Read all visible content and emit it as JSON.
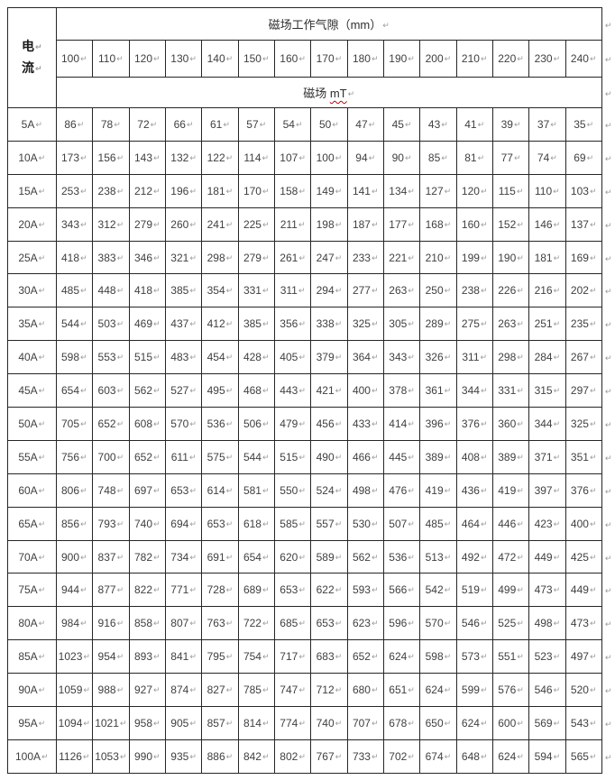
{
  "marks": {
    "cell_end": "↵"
  },
  "colors": {
    "border": "#262626",
    "text": "#404040",
    "paragraph_mark": "#9a9a9a",
    "misspell_underline": "#cc0000"
  },
  "table": {
    "corner_lines": [
      "电",
      "流"
    ],
    "top_header": "磁场工作气隙（mm）",
    "sub_header_prefix": "磁场 ",
    "sub_header_unit": "mT",
    "gap_columns": [
      "100",
      "110",
      "120",
      "130",
      "140",
      "150",
      "160",
      "170",
      "180",
      "190",
      "200",
      "210",
      "220",
      "230",
      "240"
    ],
    "rows": [
      {
        "current": "5A",
        "values": [
          86,
          78,
          72,
          66,
          61,
          57,
          54,
          50,
          47,
          45,
          43,
          41,
          39,
          37,
          35
        ]
      },
      {
        "current": "10A",
        "values": [
          173,
          156,
          143,
          132,
          122,
          114,
          107,
          100,
          94,
          90,
          85,
          81,
          77,
          74,
          69
        ]
      },
      {
        "current": "15A",
        "values": [
          253,
          238,
          212,
          196,
          181,
          170,
          158,
          149,
          141,
          134,
          127,
          120,
          115,
          110,
          103
        ]
      },
      {
        "current": "20A",
        "values": [
          343,
          312,
          279,
          260,
          241,
          225,
          211,
          198,
          187,
          177,
          168,
          160,
          152,
          146,
          137
        ]
      },
      {
        "current": "25A",
        "values": [
          418,
          383,
          346,
          321,
          298,
          279,
          261,
          247,
          233,
          221,
          210,
          199,
          190,
          181,
          169
        ]
      },
      {
        "current": "30A",
        "values": [
          485,
          448,
          418,
          385,
          354,
          331,
          311,
          294,
          277,
          263,
          250,
          238,
          226,
          216,
          202
        ]
      },
      {
        "current": "35A",
        "values": [
          544,
          503,
          469,
          437,
          412,
          385,
          356,
          338,
          325,
          305,
          289,
          275,
          263,
          251,
          235
        ]
      },
      {
        "current": "40A",
        "values": [
          598,
          553,
          515,
          483,
          454,
          428,
          405,
          379,
          364,
          343,
          326,
          311,
          298,
          284,
          267
        ]
      },
      {
        "current": "45A",
        "values": [
          654,
          603,
          562,
          527,
          495,
          468,
          443,
          421,
          400,
          378,
          361,
          344,
          331,
          315,
          297
        ]
      },
      {
        "current": "50A",
        "values": [
          705,
          652,
          608,
          570,
          536,
          506,
          479,
          456,
          433,
          414,
          396,
          376,
          360,
          344,
          325
        ]
      },
      {
        "current": "55A",
        "values": [
          756,
          700,
          652,
          611,
          575,
          544,
          515,
          490,
          466,
          445,
          389,
          408,
          389,
          371,
          351
        ]
      },
      {
        "current": "60A",
        "values": [
          806,
          748,
          697,
          653,
          614,
          581,
          550,
          524,
          498,
          476,
          419,
          436,
          419,
          397,
          376
        ]
      },
      {
        "current": "65A",
        "values": [
          856,
          793,
          740,
          694,
          653,
          618,
          585,
          557,
          530,
          507,
          485,
          464,
          446,
          423,
          400
        ]
      },
      {
        "current": "70A",
        "values": [
          900,
          837,
          782,
          734,
          691,
          654,
          620,
          589,
          562,
          536,
          513,
          492,
          472,
          449,
          425
        ]
      },
      {
        "current": "75A",
        "values": [
          944,
          877,
          822,
          771,
          728,
          689,
          653,
          622,
          593,
          566,
          542,
          519,
          499,
          473,
          449
        ]
      },
      {
        "current": "80A",
        "values": [
          984,
          916,
          858,
          807,
          763,
          722,
          685,
          653,
          623,
          596,
          570,
          546,
          525,
          498,
          473
        ]
      },
      {
        "current": "85A",
        "values": [
          1023,
          954,
          893,
          841,
          795,
          754,
          717,
          683,
          652,
          624,
          598,
          573,
          551,
          523,
          497
        ]
      },
      {
        "current": "90A",
        "values": [
          1059,
          988,
          927,
          874,
          827,
          785,
          747,
          712,
          680,
          651,
          624,
          599,
          576,
          546,
          520
        ]
      },
      {
        "current": "95A",
        "values": [
          1094,
          1021,
          958,
          905,
          857,
          814,
          774,
          740,
          707,
          678,
          650,
          624,
          600,
          569,
          543
        ]
      },
      {
        "current": "100A",
        "values": [
          1126,
          1053,
          990,
          935,
          886,
          842,
          802,
          767,
          733,
          702,
          674,
          648,
          624,
          594,
          565
        ]
      }
    ]
  }
}
